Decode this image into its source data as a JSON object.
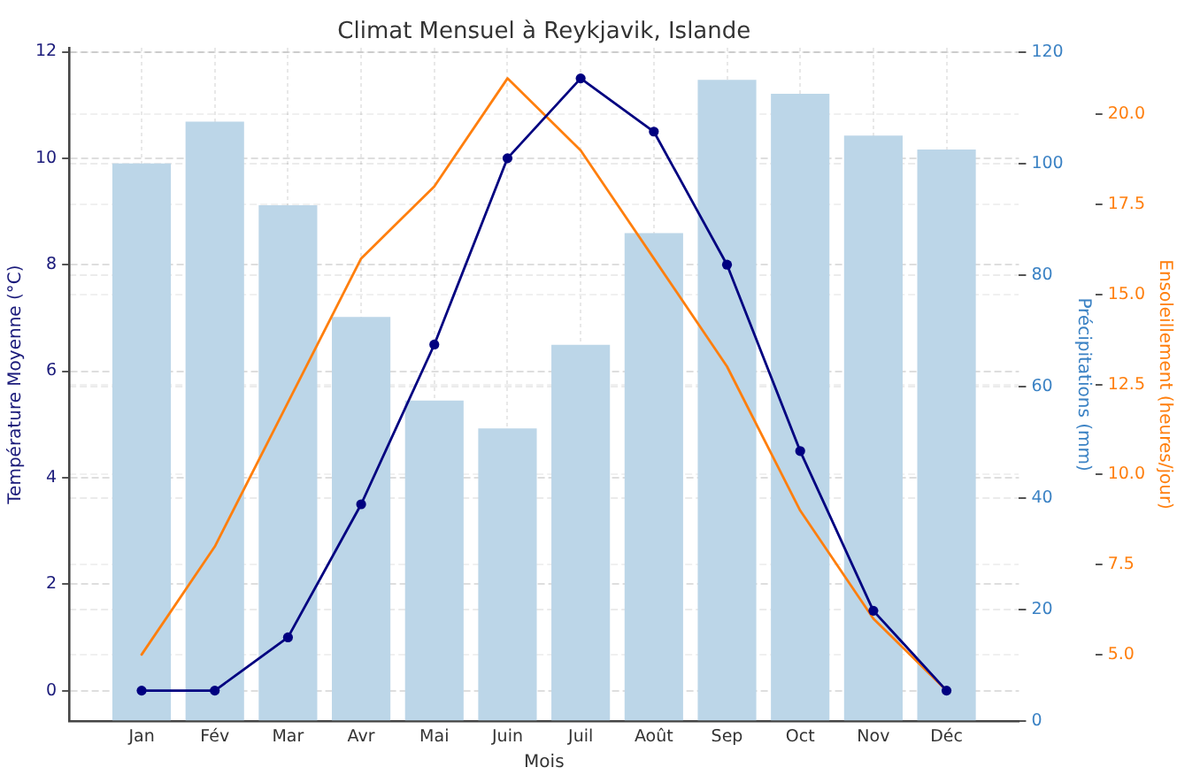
{
  "chart_data": {
    "type": "bar",
    "title": "Climat Mensuel à Reykjavik, Islande",
    "xlabel": "Mois",
    "ylabel": "Température Moyenne (°C)",
    "y2label": "Précipitations (mm)",
    "y3label": "Ensoleillement (heures/jour)",
    "categories": [
      "Jan",
      "Fév",
      "Mar",
      "Avr",
      "Mai",
      "Juin",
      "Juil",
      "Août",
      "Sep",
      "Oct",
      "Nov",
      "Déc"
    ],
    "series": [
      {
        "axis": "y2",
        "color": "#bcd6e8",
        "values": [
          100,
          107.5,
          92.5,
          72.5,
          57.5,
          52.5,
          67.5,
          87.5,
          115,
          112.5,
          105,
          102.5
        ]
      },
      {
        "type": "line",
        "color": "#000080",
        "marker": "circle",
        "values": [
          0,
          0,
          1,
          3.5,
          6.5,
          10,
          11.5,
          10.5,
          8,
          4.5,
          1.5,
          0
        ]
      },
      {
        "type": "line",
        "axis": "y3",
        "color": "#ff7f0e",
        "values": [
          5,
          8,
          12,
          16,
          18,
          21,
          19,
          16,
          13,
          9,
          6,
          4
        ]
      }
    ],
    "ylim": [
      -0.575,
      12.075
    ],
    "yticks": [
      0,
      2,
      4,
      6,
      8,
      10,
      12
    ],
    "y2lim": [
      0,
      120.75
    ],
    "y2ticks": [
      0,
      20,
      40,
      60,
      80,
      100,
      120
    ],
    "y3lim": [
      3.15,
      21.85
    ],
    "y3ticks": [
      {
        "value": 5,
        "label": "5.0"
      },
      7.5,
      {
        "value": 10,
        "label": "10.0"
      },
      12.5,
      {
        "value": 15,
        "label": "15.0"
      },
      17.5,
      {
        "value": 20,
        "label": "20.0"
      }
    ],
    "grid": true
  }
}
